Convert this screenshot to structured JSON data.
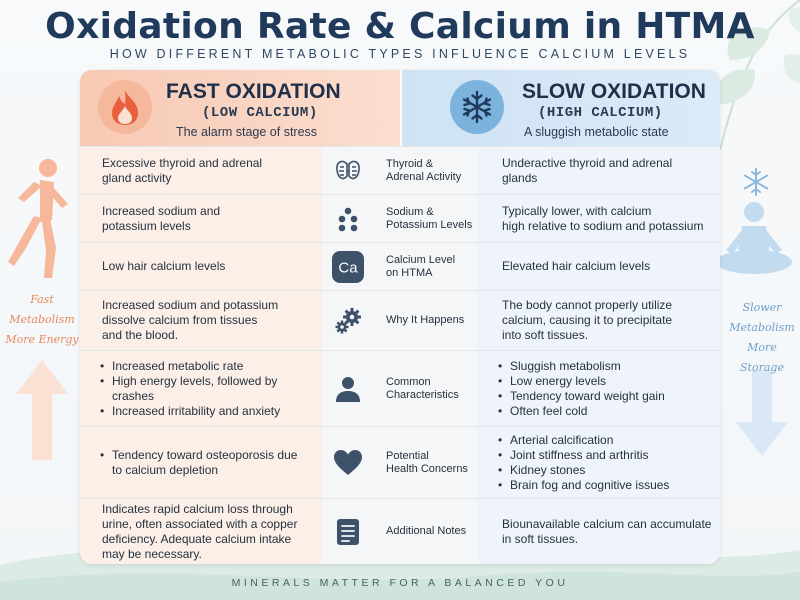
{
  "title": "Oxidation Rate & Calcium in HTMA",
  "subtitle": "HOW DIFFERENT METABOLIC TYPES INFLUENCE CALCIUM LEVELS",
  "footer": "MINERALS MATTER FOR A BALANCED YOU",
  "side_left": [
    "Fast",
    "Metabolism",
    "More Energy"
  ],
  "side_right": [
    "Slower",
    "Metabolism",
    "More Storage"
  ],
  "colors": {
    "title": "#1f3a5a",
    "fast_accent": "#e8885e",
    "slow_accent": "#6e9fc9",
    "icon": "#3d5268"
  },
  "fast": {
    "icon": "flame-icon",
    "title": "FAST OXIDATION",
    "subtitle": "(LOW CALCIUM)",
    "tagline": "The alarm stage of stress"
  },
  "slow": {
    "icon": "snowflake-icon",
    "title": "SLOW OXIDATION",
    "subtitle": "(HIGH CALCIUM)",
    "tagline": "A sluggish metabolic state"
  },
  "rows": [
    {
      "icon": "thyroid-icon",
      "label": [
        "Thyroid &",
        "Adrenal Activity"
      ],
      "fast": [
        "Excessive thyroid and adrenal",
        "gland activity"
      ],
      "slow": [
        "Underactive thyroid and adrenal",
        "glands"
      ]
    },
    {
      "icon": "molecules-icon",
      "label": [
        "Sodium &",
        "Potassium Levels"
      ],
      "fast": [
        "Increased sodium and",
        "potassium levels"
      ],
      "slow": [
        "Typically lower, with calcium",
        "high relative to sodium and potassium"
      ]
    },
    {
      "icon": "ca-element-icon",
      "icon_text": "Ca",
      "label": [
        "Calcium Level",
        "on HTMA"
      ],
      "fast": [
        "Low hair calcium levels"
      ],
      "slow": [
        "Elevated hair calcium levels"
      ]
    },
    {
      "icon": "gears-icon",
      "label": [
        "Why It Happens"
      ],
      "fast": [
        "Increased sodium and potassium",
        "dissolve calcium from tissues",
        "and the blood."
      ],
      "slow": [
        "The body cannot properly utilize",
        "calcium, causing it to precipitate",
        "into soft tissues."
      ]
    },
    {
      "icon": "person-icon",
      "label": [
        "Common",
        "Characteristics"
      ],
      "fast_bullets": [
        "Increased metabolic rate",
        "High energy levels, followed by crashes",
        "Increased irritability and anxiety"
      ],
      "slow_bullets": [
        "Sluggish metabolism",
        "Low energy levels",
        "Tendency toward weight gain",
        "Often feel cold"
      ]
    },
    {
      "icon": "heart-icon",
      "label": [
        "Potential",
        "Health Concerns"
      ],
      "fast_bullets": [
        "Tendency toward osteoporosis due to calcium depletion"
      ],
      "slow_bullets": [
        "Arterial calcification",
        "Joint stiffness and arthritis",
        "Kidney stones",
        "Brain fog and cognitive issues"
      ]
    },
    {
      "icon": "notes-icon",
      "label": [
        "Additional Notes"
      ],
      "fast": [
        "Indicates rapid calcium loss through",
        "urine, often associated with a copper",
        "deficiency. Adequate calcium intake",
        "may be necessary."
      ],
      "slow": [
        "Biounavailable calcium can accumulate",
        "in soft tissues."
      ]
    }
  ]
}
